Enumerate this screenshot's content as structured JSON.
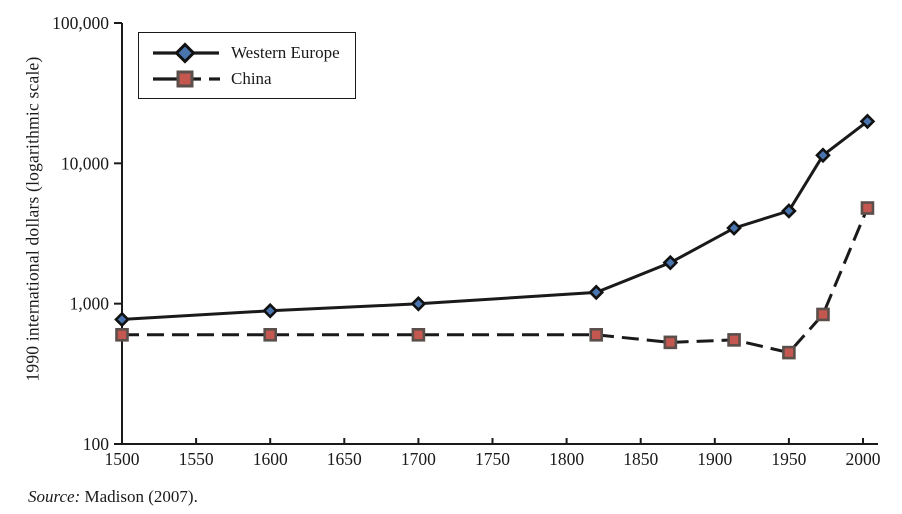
{
  "figure": {
    "background": "#ffffff",
    "axis_color": "#1a1a1a"
  },
  "chart_data": {
    "type": "line",
    "title": "",
    "xlabel": "",
    "ylabel": "1990 international dollars (logarithmic scale)",
    "yscale": "log",
    "xlim": [
      1500,
      2000
    ],
    "ylim": [
      100,
      100000
    ],
    "grid": false,
    "legend_position": "top-left",
    "x": [
      1500,
      1600,
      1700,
      1820,
      1870,
      1913,
      1950,
      1973,
      2003
    ],
    "series": [
      {
        "name": "Western Europe",
        "values": [
          772,
          890,
          998,
          1204,
          1960,
          3458,
          4579,
          11416,
          19912
        ],
        "line_style": "solid",
        "line_color": "#1a1a1a",
        "marker": "diamond",
        "marker_fill": "#4a74ae",
        "marker_stroke": "#111111"
      },
      {
        "name": "China",
        "values": [
          600,
          600,
          600,
          600,
          530,
          552,
          448,
          838,
          4803
        ],
        "line_style": "dashed",
        "line_color": "#1a1a1a",
        "marker": "square",
        "marker_fill": "#c4574f",
        "marker_stroke": "#5a4f4b"
      }
    ],
    "x_ticks": [
      1500,
      1550,
      1600,
      1650,
      1700,
      1750,
      1800,
      1850,
      1900,
      1950,
      2000
    ],
    "x_tick_labels": [
      "1500",
      "1550",
      "1600",
      "1650",
      "1700",
      "1750",
      "1800",
      "1850",
      "1900",
      "1950",
      "2000"
    ],
    "y_ticks": [
      {
        "value": 100,
        "label": "100"
      },
      {
        "value": 1000,
        "label": "1,000"
      },
      {
        "value": 10000,
        "label": "10,000"
      },
      {
        "value": 100000,
        "label": "100,000"
      }
    ]
  },
  "source": {
    "prefix": "Source:",
    "text": " Madison (2007)."
  }
}
